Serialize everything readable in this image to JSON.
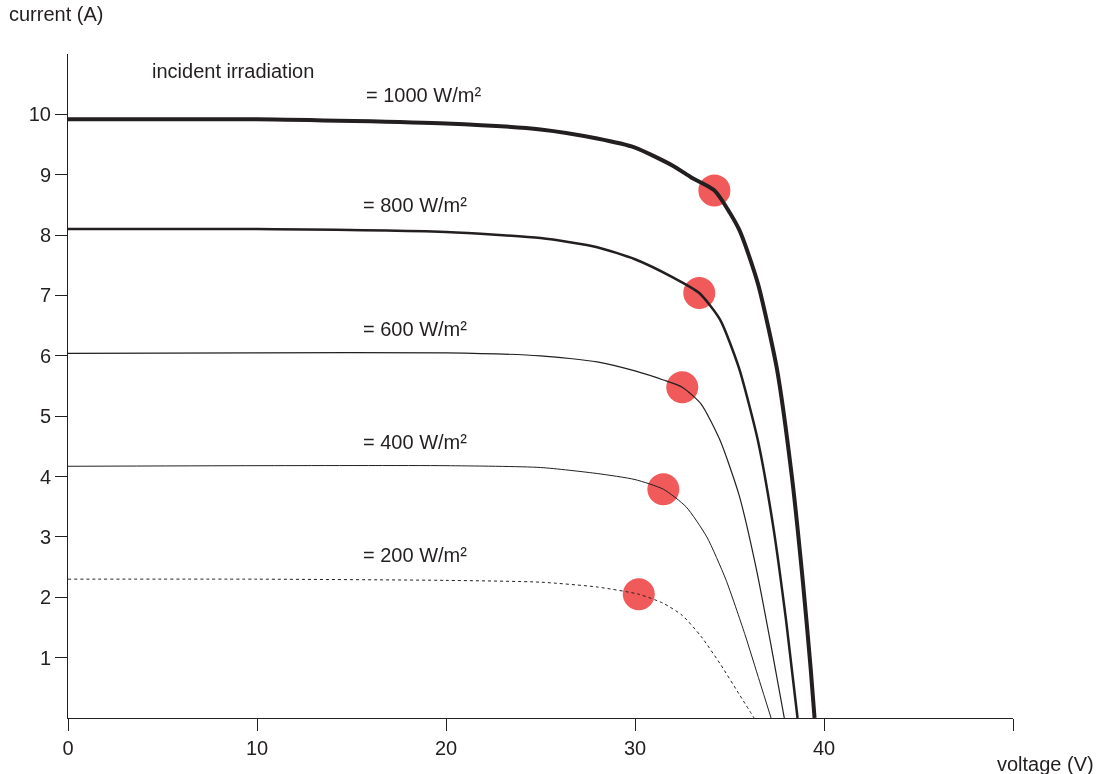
{
  "chart_data": {
    "type": "line",
    "xlabel": "voltage (V)",
    "ylabel": "current (A)",
    "xlim": [
      0,
      50
    ],
    "ylim": [
      0,
      11
    ],
    "xticks": [
      0,
      10,
      20,
      30,
      40,
      {
        "value": 50,
        "label": null
      }
    ],
    "yticks": [
      1,
      2,
      3,
      4,
      5,
      6,
      7,
      8,
      9,
      10
    ],
    "grid": false,
    "annotations": [
      "incident irradiation",
      "= 1000 W/m²",
      "= 800 W/m²",
      "= 600 W/m²",
      "= 400 W/m²",
      "= 200 W/m²"
    ],
    "series": [
      {
        "color": "#231f20",
        "line_style": "solid",
        "marker": "none",
        "x": [
          0,
          10,
          20,
          25,
          28,
          30,
          32,
          33,
          34.2,
          35.5,
          36.5,
          37.5,
          38.3,
          38.9,
          39.3,
          39.5
        ],
        "values": [
          9.92,
          9.92,
          9.85,
          9.75,
          9.6,
          9.45,
          9.15,
          8.95,
          8.74,
          8.1,
          7.2,
          5.8,
          4,
          2.2,
          0.8,
          0
        ]
      },
      {
        "color": "#231f20",
        "line_style": "solid",
        "marker": "none",
        "x": [
          0,
          10,
          20,
          25,
          28,
          30,
          32,
          33.4,
          34.5,
          35.5,
          36.5,
          37.3,
          38,
          38.6
        ],
        "values": [
          8.1,
          8.1,
          8.05,
          7.95,
          7.8,
          7.6,
          7.3,
          7.04,
          6.6,
          5.8,
          4.6,
          3.2,
          1.6,
          0
        ]
      },
      {
        "color": "#231f20",
        "line_style": "solid",
        "marker": "none",
        "x": [
          0,
          10,
          20,
          25,
          28,
          30,
          31.5,
          32.5,
          33.5,
          34.5,
          35.5,
          36.4,
          37.2,
          37.9
        ],
        "values": [
          6.04,
          6.05,
          6.05,
          6,
          5.9,
          5.75,
          5.6,
          5.48,
          5.2,
          4.6,
          3.7,
          2.5,
          1.2,
          0
        ]
      },
      {
        "color": "#231f20",
        "line_style": "solid",
        "marker": "none",
        "x": [
          0,
          10,
          20,
          25,
          28,
          30,
          31.5,
          32.7,
          33.8,
          34.8,
          35.8,
          36.6,
          37.2
        ],
        "values": [
          4.17,
          4.18,
          4.18,
          4.15,
          4.05,
          3.95,
          3.79,
          3.5,
          3,
          2.3,
          1.4,
          0.6,
          0
        ]
      },
      {
        "color": "#231f20",
        "line_style": "dotted",
        "marker": "none",
        "x": [
          0,
          10,
          20,
          25,
          28,
          30.2,
          31.5,
          32.5,
          33.5,
          34.5,
          35.5,
          36.3
        ],
        "values": [
          2.3,
          2.3,
          2.28,
          2.25,
          2.17,
          2.05,
          1.9,
          1.7,
          1.35,
          0.9,
          0.4,
          0
        ]
      },
      {
        "type": "scatter",
        "color": "#f05a5a",
        "marker": "circle",
        "x": [
          34.2,
          33.4,
          32.5,
          31.5,
          30.2
        ],
        "values": [
          8.74,
          7.04,
          5.48,
          3.79,
          2.05
        ]
      }
    ]
  }
}
